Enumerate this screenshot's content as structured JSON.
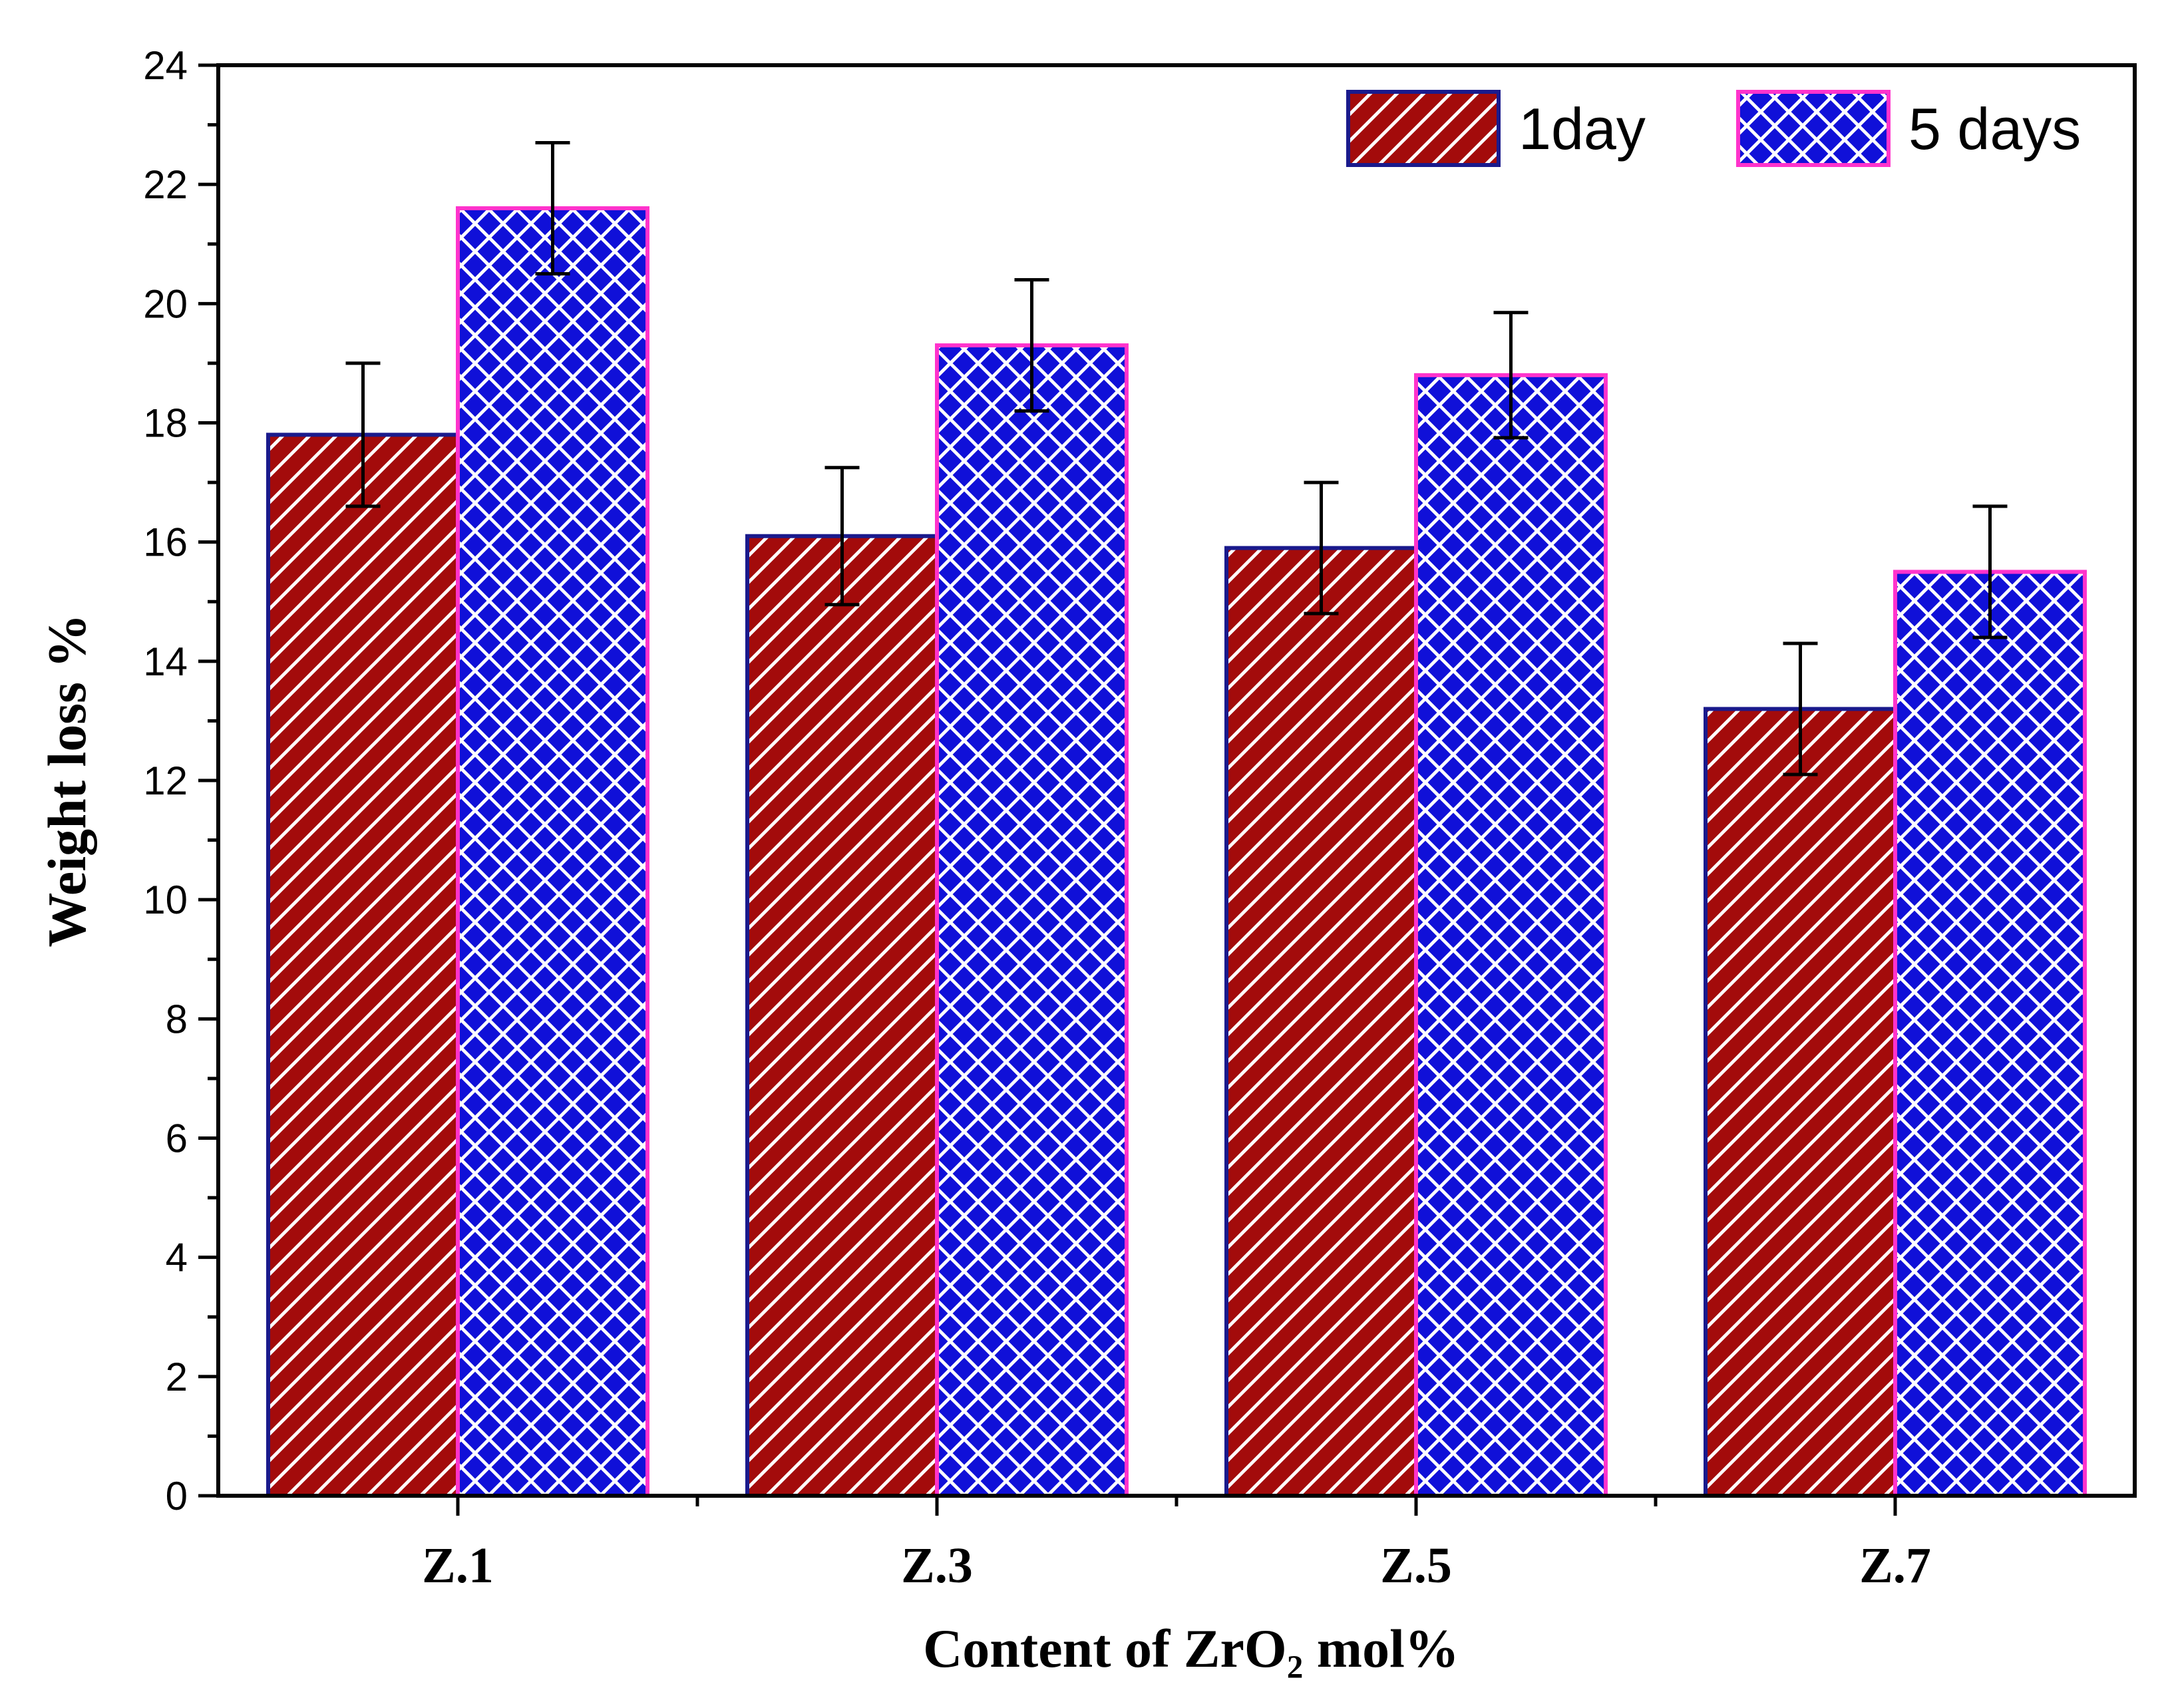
{
  "chart_data": {
    "type": "bar",
    "title": "",
    "categories": [
      "Z.1",
      "Z.3",
      "Z.5",
      "Z.7"
    ],
    "series": [
      {
        "name": "1day",
        "values": [
          17.8,
          16.1,
          15.9,
          13.2
        ],
        "errors": [
          1.2,
          1.15,
          1.1,
          1.1
        ],
        "fill": "#a30b0b",
        "pattern_color": "#ffffff",
        "pattern": "diagonal",
        "stroke": "#1a1a8c"
      },
      {
        "name": "5 days",
        "values": [
          21.6,
          19.3,
          18.8,
          15.5
        ],
        "errors": [
          1.1,
          1.1,
          1.05,
          1.1
        ],
        "fill": "#1010d8",
        "pattern_color": "#ffffff",
        "pattern": "crosshatch",
        "stroke": "#ff33cc"
      }
    ],
    "xlabel": "Content of  ZrO₂ mol%",
    "ylabel": "Weight loss %",
    "ylim": [
      0,
      24
    ],
    "yticks": [
      0,
      2,
      4,
      6,
      8,
      10,
      12,
      14,
      16,
      18,
      20,
      22,
      24
    ],
    "ytick_labels": [
      "0",
      "2",
      "4",
      "6",
      "8",
      "10",
      "12",
      "14",
      "16",
      "18",
      "20",
      "22",
      "24"
    ],
    "grid": false,
    "legend_position": "top-right"
  }
}
